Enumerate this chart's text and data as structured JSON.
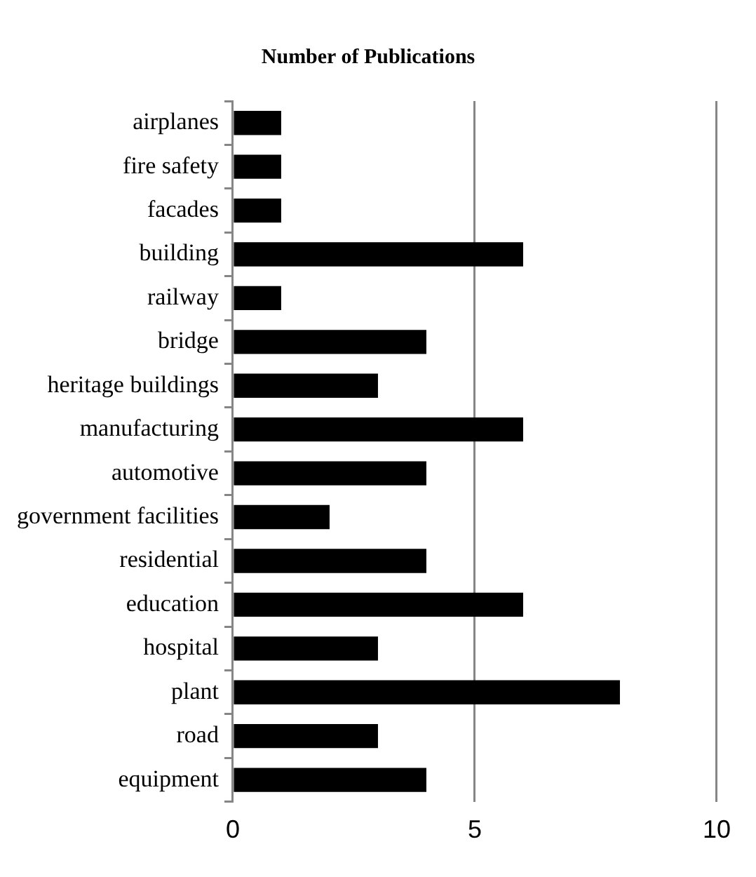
{
  "chart_data": {
    "type": "bar",
    "orientation": "horizontal",
    "title": "Number of Publications",
    "categories": [
      "airplanes",
      "fire safety",
      "facades",
      "building",
      "railway",
      "bridge",
      "heritage buildings",
      "manufacturing",
      "automotive",
      "government facilities",
      "residential",
      "education",
      "hospital",
      "plant",
      "road",
      "equipment"
    ],
    "values": [
      1,
      1,
      1,
      6,
      1,
      4,
      3,
      6,
      4,
      2,
      4,
      6,
      3,
      8,
      3,
      4
    ],
    "color": "#000000",
    "xlim": [
      0,
      10
    ],
    "xticks": [
      0,
      5,
      10
    ],
    "grid": "x",
    "legend": false
  }
}
